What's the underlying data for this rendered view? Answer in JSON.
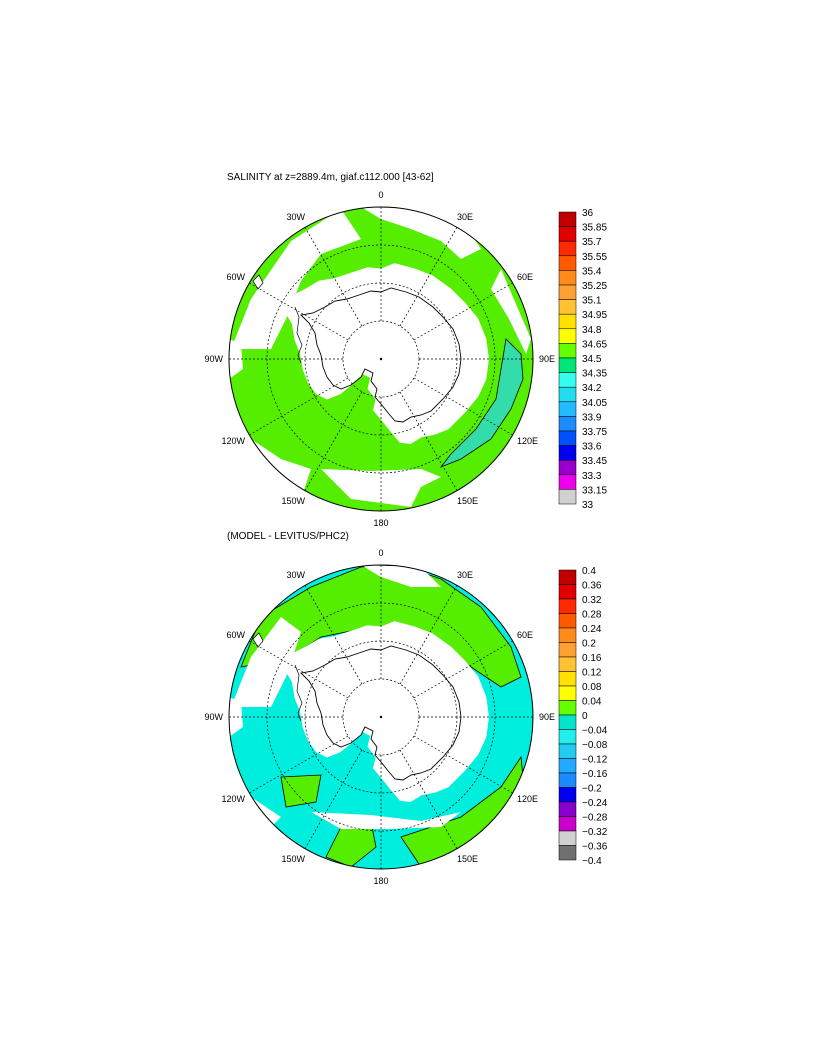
{
  "top": {
    "title": "SALINITY at z=2889.4m, giaf.c112.000 [43-62]",
    "longitude_labels": [
      "0",
      "30E",
      "60E",
      "90E",
      "120E",
      "150E",
      "180",
      "150W",
      "120W",
      "90W",
      "60W",
      "30W"
    ],
    "colorbar_labels": [
      "36",
      "35.85",
      "35.7",
      "35.55",
      "35.4",
      "35.25",
      "35.1",
      "34.95",
      "34.8",
      "34.65",
      "34.5",
      "34.35",
      "34.2",
      "34.05",
      "33.9",
      "33.75",
      "33.6",
      "33.45",
      "33.3",
      "33.15",
      "33"
    ],
    "colorbar_colors": [
      "#c00000",
      "#e00000",
      "#ff2a00",
      "#ff5a00",
      "#ff8c1a",
      "#ffa033",
      "#ffc233",
      "#ffe000",
      "#ffff00",
      "#66ff00",
      "#00e676",
      "#33ffee",
      "#22ddee",
      "#22bbff",
      "#1a8cff",
      "#0050ff",
      "#0000ee",
      "#9900cc",
      "#ee00ee",
      "#d0d0d0"
    ]
  },
  "bottom": {
    "title": "(MODEL - LEVITUS/PHC2)",
    "longitude_labels": [
      "0",
      "30E",
      "60E",
      "90E",
      "120E",
      "150E",
      "180",
      "150W",
      "120W",
      "90W",
      "60W",
      "30W"
    ],
    "colorbar_labels": [
      "0.4",
      "0.36",
      "0.32",
      "0.28",
      "0.24",
      "0.2",
      "0.16",
      "0.12",
      "0.08",
      "0.04",
      "0",
      "−0.04",
      "−0.08",
      "−0.12",
      "−0.16",
      "−0.2",
      "−0.24",
      "−0.28",
      "−0.32",
      "−0.36",
      "−0.4"
    ],
    "colorbar_colors": [
      "#c00000",
      "#e00000",
      "#ff2a00",
      "#ff5a00",
      "#ff8c1a",
      "#ffa033",
      "#ffc233",
      "#ffe000",
      "#ffff00",
      "#66ff00",
      "#00e5cc",
      "#22eeee",
      "#22ccee",
      "#22aaff",
      "#1a8cff",
      "#0000ee",
      "#8800cc",
      "#cc00cc",
      "#d0d0d0",
      "#707070"
    ]
  },
  "colors": {
    "ocean_green": "#55ee00",
    "ocean_cyan": "#00eedd",
    "land": "#ffffff",
    "grid": "#000000"
  }
}
